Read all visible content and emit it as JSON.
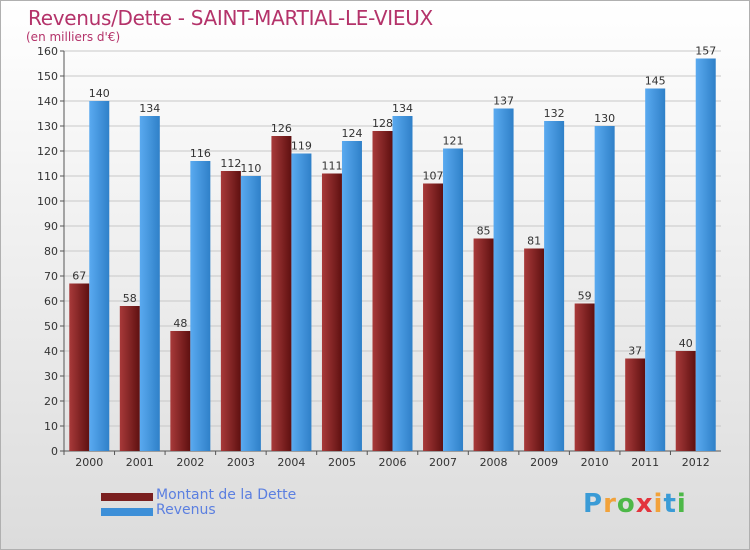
{
  "title": "Revenus/Dette - SAINT-MARTIAL-LE-VIEUX",
  "subtitle": "(en milliers d'€)",
  "logo": {
    "text": "Proxiti",
    "letters": [
      "P",
      "r",
      "o",
      "x",
      "i",
      "t",
      "i"
    ],
    "colors": [
      "#3a9bd6",
      "#f2a23a",
      "#4db848",
      "#e3343c",
      "#f2a23a",
      "#3a9bd6",
      "#4db848"
    ]
  },
  "colors": {
    "dette": "#7a1f1f",
    "revenus": "#3d8fd8",
    "axis": "#555555",
    "grid": "#c8c8c8"
  },
  "chart_data": {
    "type": "bar",
    "title": "Revenus/Dette - SAINT-MARTIAL-LE-VIEUX",
    "subtitle": "(en milliers d'€)",
    "categories": [
      "2000",
      "2001",
      "2002",
      "2003",
      "2004",
      "2005",
      "2006",
      "2007",
      "2008",
      "2009",
      "2010",
      "2011",
      "2012"
    ],
    "series": [
      {
        "name": "Montant de la Dette",
        "values": [
          67,
          58,
          48,
          112,
          126,
          111,
          128,
          107,
          85,
          81,
          59,
          37,
          40
        ]
      },
      {
        "name": "Revenus",
        "values": [
          140,
          134,
          116,
          110,
          119,
          124,
          134,
          121,
          137,
          132,
          130,
          145,
          157
        ]
      }
    ],
    "ylim": [
      0,
      160
    ],
    "yticks": [
      0,
      10,
      20,
      30,
      40,
      50,
      60,
      70,
      80,
      90,
      100,
      110,
      120,
      130,
      140,
      150,
      160
    ],
    "grid": true,
    "legend": "bottom-left",
    "data_labels": true
  }
}
